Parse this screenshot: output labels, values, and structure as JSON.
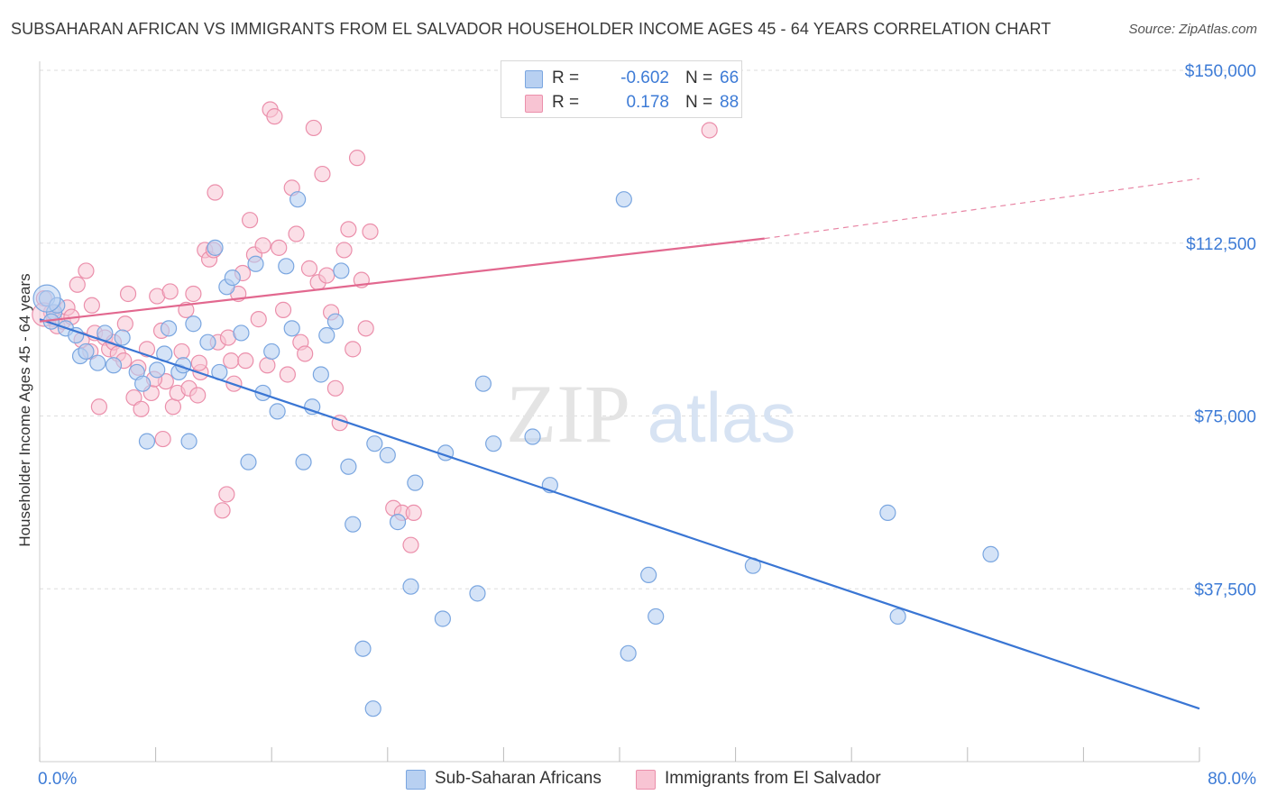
{
  "title": "SUBSAHARAN AFRICAN VS IMMIGRANTS FROM EL SALVADOR HOUSEHOLDER INCOME AGES 45 - 64 YEARS CORRELATION CHART",
  "source": "Source: ZipAtlas.com",
  "watermark": {
    "zip": "ZIP",
    "atlas": "atlas"
  },
  "legend": {
    "rows": [
      {
        "label": "R =",
        "r": "-0.602",
        "n_label": "N =",
        "n": "66"
      },
      {
        "label": "R =",
        "r": "0.178",
        "n_label": "N =",
        "n": "88"
      }
    ]
  },
  "colors": {
    "blue_fill": "#b8d0f1",
    "blue_stroke": "#7aa6e0",
    "blue_line": "#3a76d4",
    "pink_fill": "#f8c4d3",
    "pink_stroke": "#eb8fab",
    "pink_line": "#e2688f",
    "axis_text": "#3d7bd6",
    "grid": "#dddddd"
  },
  "chart_data": {
    "type": "scatter",
    "title": "SUBSAHARAN AFRICAN VS IMMIGRANTS FROM EL SALVADOR HOUSEHOLDER INCOME AGES 45 - 64 YEARS CORRELATION CHART",
    "xlabel": "",
    "ylabel": "Householder Income Ages 45 - 64 years",
    "xlim": [
      0,
      80
    ],
    "ylim": [
      0,
      150000
    ],
    "x_tick_labels": [
      "0.0%",
      "80.0%"
    ],
    "y_ticks": [
      37500,
      75000,
      112500,
      150000
    ],
    "y_tick_labels": [
      "$37,500",
      "$75,000",
      "$112,500",
      "$150,000"
    ],
    "grid": true,
    "series": [
      {
        "name": "Sub-Saharan Africans",
        "R": -0.602,
        "N": 66,
        "trend": {
          "x0": 0,
          "y0": 96000,
          "x1": 80,
          "y1": 11500
        },
        "points": [
          [
            0.5,
            100500
          ],
          [
            1.0,
            97500
          ],
          [
            1.8,
            94000
          ],
          [
            2.5,
            92500
          ],
          [
            2.8,
            88000
          ],
          [
            3.2,
            89000
          ],
          [
            4.0,
            86500
          ],
          [
            4.5,
            93000
          ],
          [
            5.1,
            86000
          ],
          [
            5.7,
            92000
          ],
          [
            6.7,
            84500
          ],
          [
            7.1,
            82000
          ],
          [
            8.1,
            85000
          ],
          [
            7.4,
            69500
          ],
          [
            8.9,
            94000
          ],
          [
            8.6,
            88500
          ],
          [
            9.6,
            84500
          ],
          [
            9.9,
            86000
          ],
          [
            10.3,
            69500
          ],
          [
            10.6,
            95000
          ],
          [
            11.6,
            91000
          ],
          [
            12.1,
            111500
          ],
          [
            12.4,
            84500
          ],
          [
            12.9,
            103000
          ],
          [
            13.3,
            105000
          ],
          [
            13.9,
            93000
          ],
          [
            14.4,
            65000
          ],
          [
            14.9,
            108000
          ],
          [
            15.4,
            80000
          ],
          [
            16.0,
            89000
          ],
          [
            16.4,
            76000
          ],
          [
            17.0,
            107500
          ],
          [
            17.4,
            94000
          ],
          [
            17.8,
            122000
          ],
          [
            18.2,
            65000
          ],
          [
            18.8,
            77000
          ],
          [
            19.4,
            84000
          ],
          [
            19.8,
            92500
          ],
          [
            20.4,
            95500
          ],
          [
            20.8,
            106500
          ],
          [
            21.3,
            64000
          ],
          [
            21.6,
            51500
          ],
          [
            22.3,
            24500
          ],
          [
            23.1,
            69000
          ],
          [
            23.0,
            11500
          ],
          [
            24.0,
            66500
          ],
          [
            24.7,
            52000
          ],
          [
            25.6,
            38000
          ],
          [
            25.9,
            60500
          ],
          [
            27.8,
            31000
          ],
          [
            28.0,
            67000
          ],
          [
            30.2,
            36500
          ],
          [
            30.6,
            82000
          ],
          [
            31.3,
            69000
          ],
          [
            34.0,
            70500
          ],
          [
            35.2,
            60000
          ],
          [
            40.3,
            122000
          ],
          [
            40.6,
            23500
          ],
          [
            42.0,
            40500
          ],
          [
            42.5,
            31500
          ],
          [
            49.2,
            42500
          ],
          [
            58.5,
            54000
          ],
          [
            59.2,
            31500
          ],
          [
            65.6,
            45000
          ],
          [
            1.2,
            99000
          ],
          [
            0.8,
            95500
          ]
        ]
      },
      {
        "name": "Immigrants from El Salvador",
        "R": 0.178,
        "N": 88,
        "trend": {
          "x0": 0,
          "y0": 95500,
          "x1": 50,
          "y1": 113500,
          "dashed_to": {
            "x": 80,
            "y": 126500
          }
        },
        "points": [
          [
            0.3,
            100500
          ],
          [
            0.8,
            97500
          ],
          [
            1.0,
            96000
          ],
          [
            1.2,
            94500
          ],
          [
            1.6,
            95500
          ],
          [
            1.9,
            98500
          ],
          [
            2.2,
            96500
          ],
          [
            2.6,
            103500
          ],
          [
            2.9,
            91500
          ],
          [
            3.2,
            106500
          ],
          [
            3.5,
            89000
          ],
          [
            3.8,
            93000
          ],
          [
            4.1,
            77000
          ],
          [
            4.5,
            92000
          ],
          [
            4.8,
            89500
          ],
          [
            5.1,
            91000
          ],
          [
            5.4,
            88500
          ],
          [
            5.8,
            87000
          ],
          [
            6.1,
            101500
          ],
          [
            6.5,
            79000
          ],
          [
            6.8,
            85500
          ],
          [
            7.0,
            76500
          ],
          [
            7.4,
            89500
          ],
          [
            7.7,
            80000
          ],
          [
            8.1,
            101000
          ],
          [
            8.4,
            93500
          ],
          [
            8.7,
            82500
          ],
          [
            9.0,
            102000
          ],
          [
            9.2,
            77000
          ],
          [
            9.5,
            80000
          ],
          [
            9.8,
            89000
          ],
          [
            10.1,
            98000
          ],
          [
            10.3,
            81000
          ],
          [
            10.6,
            101500
          ],
          [
            10.9,
            79500
          ],
          [
            11.1,
            84500
          ],
          [
            11.4,
            111000
          ],
          [
            11.7,
            109000
          ],
          [
            12.0,
            111000
          ],
          [
            12.3,
            91000
          ],
          [
            12.6,
            54500
          ],
          [
            12.9,
            58000
          ],
          [
            12.1,
            123500
          ],
          [
            13.2,
            87000
          ],
          [
            13.4,
            82000
          ],
          [
            13.7,
            101500
          ],
          [
            14.0,
            106000
          ],
          [
            14.2,
            87000
          ],
          [
            14.5,
            117500
          ],
          [
            14.8,
            110000
          ],
          [
            15.1,
            96000
          ],
          [
            15.4,
            112000
          ],
          [
            15.7,
            86000
          ],
          [
            15.9,
            141500
          ],
          [
            16.2,
            140000
          ],
          [
            16.5,
            111500
          ],
          [
            16.8,
            98000
          ],
          [
            17.1,
            84000
          ],
          [
            17.4,
            124500
          ],
          [
            17.7,
            114500
          ],
          [
            18.0,
            91000
          ],
          [
            18.3,
            88500
          ],
          [
            18.6,
            107000
          ],
          [
            18.9,
            137500
          ],
          [
            19.2,
            104000
          ],
          [
            19.5,
            127500
          ],
          [
            19.8,
            105500
          ],
          [
            20.1,
            97500
          ],
          [
            20.4,
            81000
          ],
          [
            20.7,
            73500
          ],
          [
            21.0,
            111000
          ],
          [
            21.3,
            115500
          ],
          [
            21.6,
            89500
          ],
          [
            21.9,
            131000
          ],
          [
            22.2,
            104500
          ],
          [
            22.5,
            94000
          ],
          [
            22.8,
            115000
          ],
          [
            25.6,
            47000
          ],
          [
            24.4,
            55000
          ],
          [
            25.0,
            54000
          ],
          [
            25.8,
            54000
          ],
          [
            46.2,
            137000
          ],
          [
            8.5,
            70000
          ],
          [
            7.9,
            83000
          ],
          [
            3.6,
            99000
          ],
          [
            5.9,
            95000
          ],
          [
            11.0,
            86500
          ],
          [
            13.0,
            92000
          ]
        ]
      }
    ]
  },
  "bottom_legend": [
    {
      "label": "Sub-Saharan Africans"
    },
    {
      "label": "Immigrants from El Salvador"
    }
  ]
}
